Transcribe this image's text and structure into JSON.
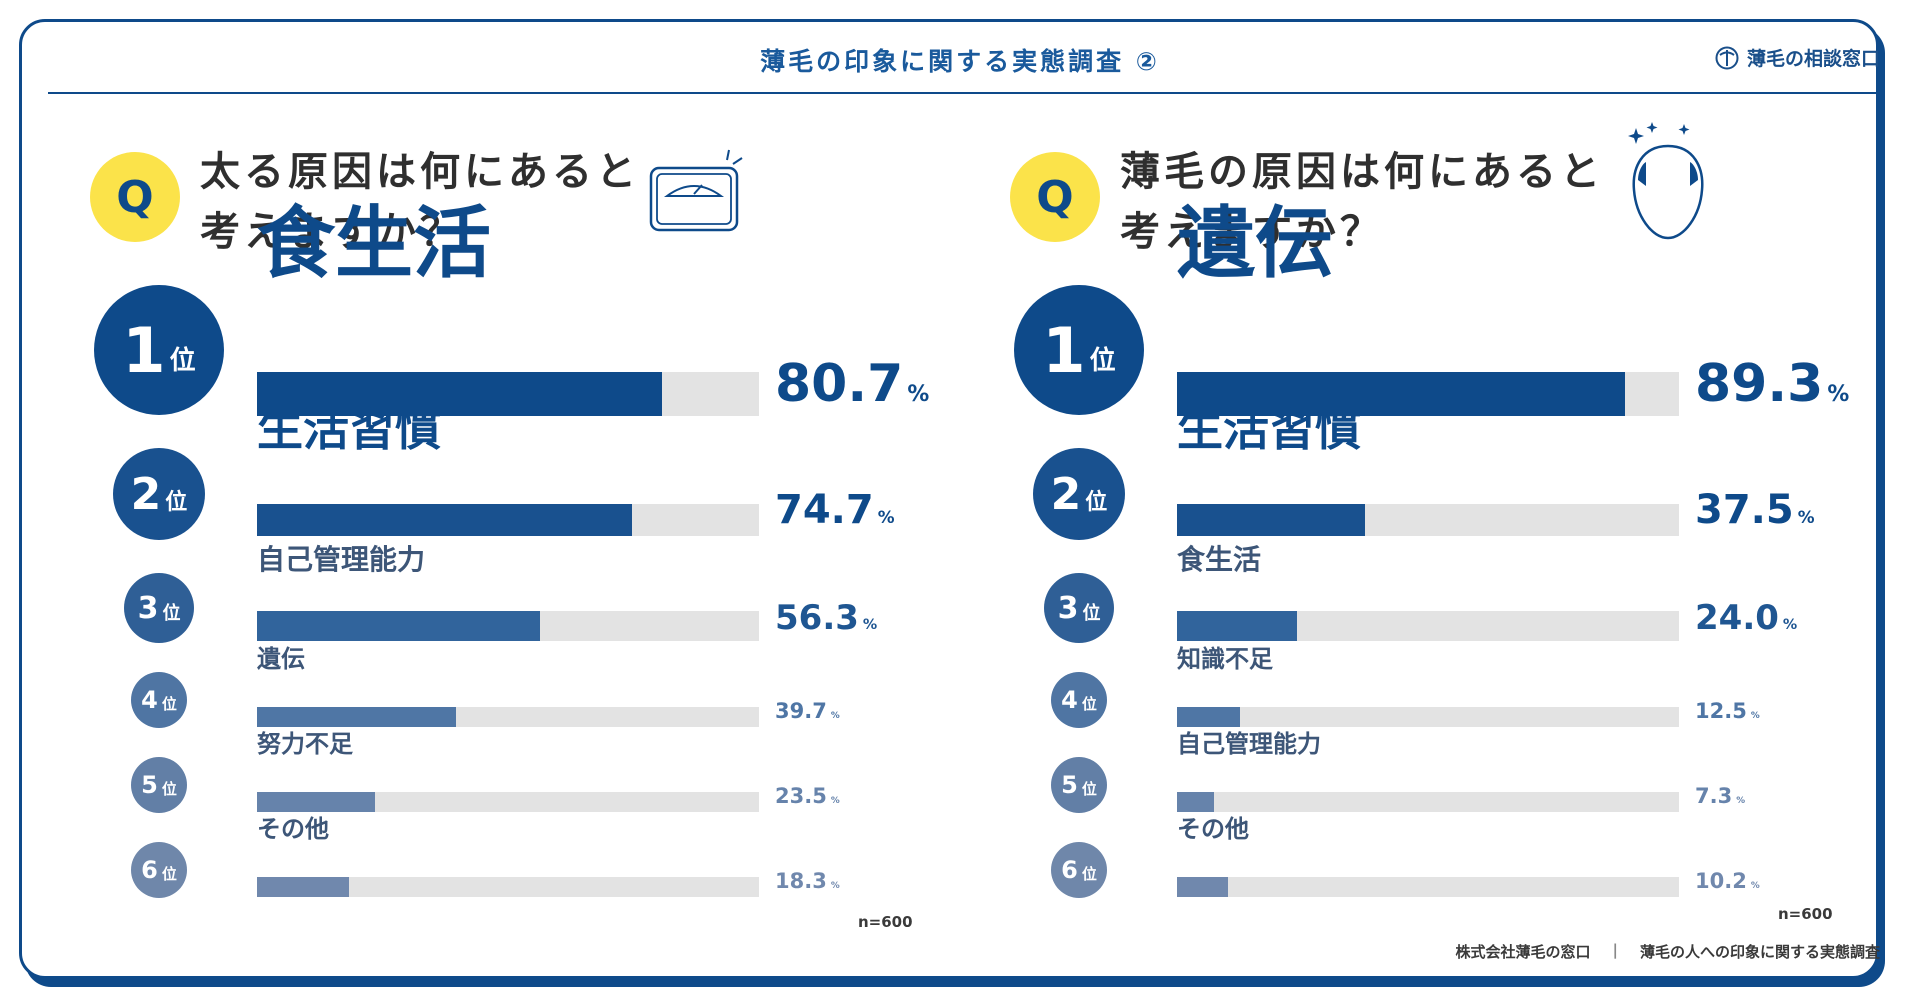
{
  "header": {
    "title": "薄毛の印象に関する実態調査 ②",
    "logo_text": "薄毛の相談窓口"
  },
  "chart_data": [
    {
      "type": "bar",
      "question": [
        "太る原因は何にあると",
        "考えますか？"
      ],
      "categories": [
        "食生活",
        "生活習慣",
        "自己管理能力",
        "遺伝",
        "努力不足",
        "その他"
      ],
      "values": [
        80.7,
        74.7,
        56.3,
        39.7,
        23.5,
        18.3
      ],
      "ranks": [
        "1",
        "2",
        "3",
        "4",
        "5",
        "6"
      ],
      "rank_suffix": "位",
      "unit": "%",
      "xlim": [
        0,
        100
      ],
      "n": "n=600"
    },
    {
      "type": "bar",
      "question": [
        "薄毛の原因は何にあると",
        "考えますか？"
      ],
      "categories": [
        "遺伝",
        "生活習慣",
        "食生活",
        "知識不足",
        "自己管理能力",
        "その他"
      ],
      "values": [
        89.3,
        37.5,
        24.0,
        12.5,
        7.3,
        10.2
      ],
      "ranks": [
        "1",
        "2",
        "3",
        "4",
        "5",
        "6"
      ],
      "rank_suffix": "位",
      "unit": "%",
      "xlim": [
        0,
        100
      ],
      "n": "n=600"
    }
  ],
  "colors": {
    "rank_fills": [
      "#0e4a8a",
      "#19518f",
      "#2f5f96",
      "#4f75a3",
      "#627fa6",
      "#6f87aa"
    ],
    "bar_fills": [
      "#0e4a8a",
      "#19518f",
      "#31649c",
      "#4f76a5",
      "#6683ab",
      "#7088ad"
    ],
    "track": "#e3e3e3",
    "accent": "#fbe34a"
  },
  "q_mark": "Q",
  "footer": {
    "company": "株式会社薄毛の窓口",
    "separator": "|",
    "survey": "薄毛の人への印象に関する実態調査"
  }
}
